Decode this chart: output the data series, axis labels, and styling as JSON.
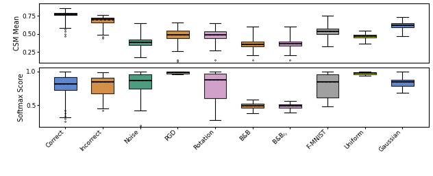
{
  "categories": [
    "Correct",
    "Incorrect",
    "Noise",
    "PGD",
    "Rotation",
    "B&B",
    "B&B$_{l_2}$",
    "F-MNIST",
    "Uniform",
    "Gaussian"
  ],
  "colors": [
    "#4472C4",
    "#C97B27",
    "#2E8B6A",
    "#C97B27",
    "#C991C4",
    "#C97B27",
    "#C991C4",
    "#909090",
    "#C8C800",
    "#4472C4"
  ],
  "csm_boxes": [
    {
      "q1": 0.765,
      "median": 0.775,
      "q3": 0.79,
      "whislo": 0.58,
      "whishi": 0.855,
      "mean": 0.778
    },
    {
      "q1": 0.655,
      "median": 0.7,
      "q3": 0.725,
      "whislo": 0.49,
      "whishi": 0.765,
      "mean": 0.695
    },
    {
      "q1": 0.345,
      "median": 0.385,
      "q3": 0.425,
      "whislo": 0.18,
      "whishi": 0.65,
      "mean": 0.385
    },
    {
      "q1": 0.44,
      "median": 0.49,
      "q3": 0.54,
      "whislo": 0.26,
      "whishi": 0.655,
      "mean": 0.49
    },
    {
      "q1": 0.44,
      "median": 0.485,
      "q3": 0.535,
      "whislo": 0.27,
      "whishi": 0.65,
      "mean": 0.485
    },
    {
      "q1": 0.325,
      "median": 0.355,
      "q3": 0.39,
      "whislo": 0.2,
      "whishi": 0.6,
      "mean": 0.355
    },
    {
      "q1": 0.34,
      "median": 0.365,
      "q3": 0.39,
      "whislo": 0.2,
      "whishi": 0.6,
      "mean": 0.365
    },
    {
      "q1": 0.495,
      "median": 0.53,
      "q3": 0.57,
      "whislo": 0.33,
      "whishi": 0.75,
      "mean": 0.53
    },
    {
      "q1": 0.445,
      "median": 0.465,
      "q3": 0.49,
      "whislo": 0.36,
      "whishi": 0.545,
      "mean": 0.465
    },
    {
      "q1": 0.59,
      "median": 0.62,
      "q3": 0.65,
      "whislo": 0.47,
      "whishi": 0.73,
      "mean": 0.62
    }
  ],
  "softmax_boxes": [
    {
      "q1": 0.72,
      "median": 0.82,
      "q3": 0.92,
      "whislo": 0.32,
      "whishi": 1.0,
      "mean": 0.82
    },
    {
      "q1": 0.67,
      "median": 0.845,
      "q3": 0.91,
      "whislo": 0.45,
      "whishi": 0.99,
      "mean": 0.845
    },
    {
      "q1": 0.745,
      "median": 0.87,
      "q3": 0.96,
      "whislo": 0.42,
      "whishi": 1.0,
      "mean": 0.87
    },
    {
      "q1": 0.97,
      "median": 0.985,
      "q3": 0.995,
      "whislo": 0.96,
      "whishi": 1.0,
      "mean": 0.985
    },
    {
      "q1": 0.6,
      "median": 0.88,
      "q3": 0.97,
      "whislo": 0.28,
      "whishi": 1.0,
      "mean": 0.88
    },
    {
      "q1": 0.46,
      "median": 0.49,
      "q3": 0.52,
      "whislo": 0.38,
      "whishi": 0.58,
      "mean": 0.49
    },
    {
      "q1": 0.465,
      "median": 0.49,
      "q3": 0.515,
      "whislo": 0.39,
      "whishi": 0.565,
      "mean": 0.49
    },
    {
      "q1": 0.615,
      "median": 0.845,
      "q3": 0.955,
      "whislo": 0.48,
      "whishi": 1.0,
      "mean": 0.845
    },
    {
      "q1": 0.96,
      "median": 0.975,
      "q3": 0.99,
      "whislo": 0.94,
      "whishi": 1.0,
      "mean": 0.975
    },
    {
      "q1": 0.79,
      "median": 0.845,
      "q3": 0.88,
      "whislo": 0.68,
      "whishi": 1.0,
      "mean": 0.845
    }
  ],
  "csm_ylabel": "CSM Mean",
  "softmax_ylabel": "Softmax Score",
  "csm_ylim": [
    0.1,
    0.92
  ],
  "softmax_ylim": [
    0.18,
    1.06
  ],
  "csm_yticks": [
    0.25,
    0.5,
    0.75
  ],
  "softmax_yticks": [
    0.5,
    1.0
  ],
  "csm_outliers": [
    [
      1,
      [
        0.56,
        0.53,
        0.5,
        0.47
      ]
    ],
    [
      2,
      [
        0.46,
        0.44
      ]
    ],
    [
      3,
      []
    ],
    [
      4,
      [
        0.14,
        0.12
      ]
    ],
    [
      5,
      [
        0.14
      ]
    ],
    [
      6,
      [
        0.14
      ]
    ],
    [
      7,
      [
        0.14
      ]
    ],
    [
      8,
      []
    ],
    [
      9,
      []
    ],
    [
      10,
      []
    ]
  ],
  "softmax_outliers": [
    [
      1,
      [
        0.42,
        0.38,
        0.34,
        0.3,
        0.26
      ]
    ],
    [
      2,
      [
        0.42
      ]
    ],
    [
      3,
      [
        0.2,
        0.18
      ]
    ],
    [
      4,
      []
    ],
    [
      5,
      []
    ],
    [
      6,
      []
    ],
    [
      7,
      []
    ],
    [
      8,
      []
    ],
    [
      9,
      []
    ],
    [
      10,
      []
    ]
  ]
}
